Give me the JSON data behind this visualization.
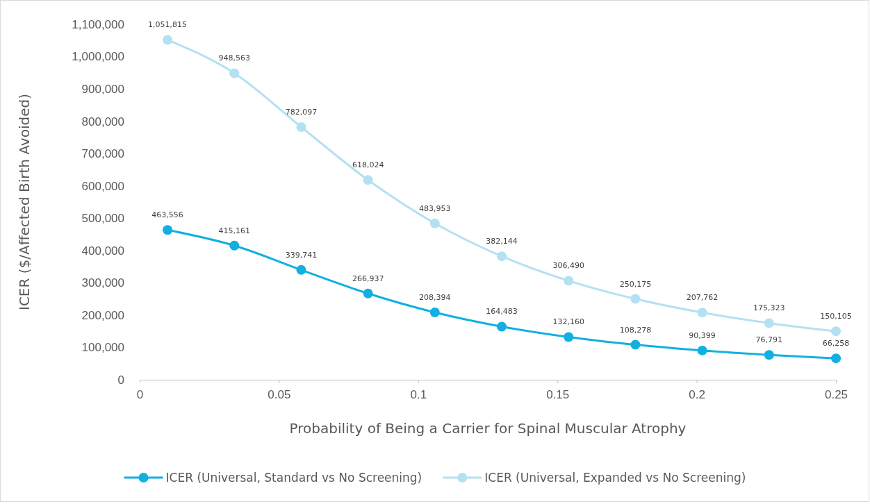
{
  "chart_data": {
    "type": "line",
    "xlabel": "Probability of Being a Carrier for Spinal Muscular Atrophy",
    "ylabel": "ICER ($/Affected Birth Avoided)",
    "x": [
      0.01,
      0.034,
      0.058,
      0.082,
      0.106,
      0.13,
      0.154,
      0.178,
      0.202,
      0.226,
      0.25
    ],
    "series": [
      {
        "name": "ICER (Universal, Standard vs No Screening)",
        "color": "#11b0e0",
        "values": [
          463556,
          415161,
          339741,
          266937,
          208394,
          164483,
          132160,
          108278,
          90399,
          76791,
          66258
        ],
        "value_labels": [
          "463,556",
          "415,161",
          "339,741",
          "266,937",
          "208,394",
          "164,483",
          "132,160",
          "108,278",
          "90,399",
          "76,791",
          "66,258"
        ]
      },
      {
        "name": "ICER (Universal, Expanded vs No Screening)",
        "color": "#b3e1f2",
        "values": [
          1051815,
          948563,
          782097,
          618024,
          483953,
          382144,
          306490,
          250175,
          207762,
          175323,
          150105
        ],
        "value_labels": [
          "1,051,815",
          "948,563",
          "782,097",
          "618,024",
          "483,953",
          "382,144",
          "306,490",
          "250,175",
          "207,762",
          "175,323",
          "150,105"
        ]
      }
    ],
    "xlim": [
      0,
      0.25
    ],
    "xticks": [
      0,
      0.05,
      0.1,
      0.15,
      0.2,
      0.25
    ],
    "ylim": [
      0,
      1100000
    ],
    "yticks": [
      0,
      {
        "value": 100000,
        "label": "100,000"
      },
      {
        "value": 200000,
        "label": "200,000"
      },
      {
        "value": 300000,
        "label": "300,000"
      },
      {
        "value": 400000,
        "label": "400,000"
      },
      {
        "value": 500000,
        "label": "500,000"
      },
      {
        "value": 600000,
        "label": "600,000"
      },
      {
        "value": 700000,
        "label": "700,000"
      },
      {
        "value": 800000,
        "label": "800,000"
      },
      {
        "value": 900000,
        "label": "900,000"
      },
      {
        "value": 1000000,
        "label": "1,000,000"
      },
      {
        "value": 1100000,
        "label": "1,100,000"
      }
    ],
    "legend": "bottom",
    "grid": false,
    "marker": "circle",
    "line_style": "solid"
  }
}
